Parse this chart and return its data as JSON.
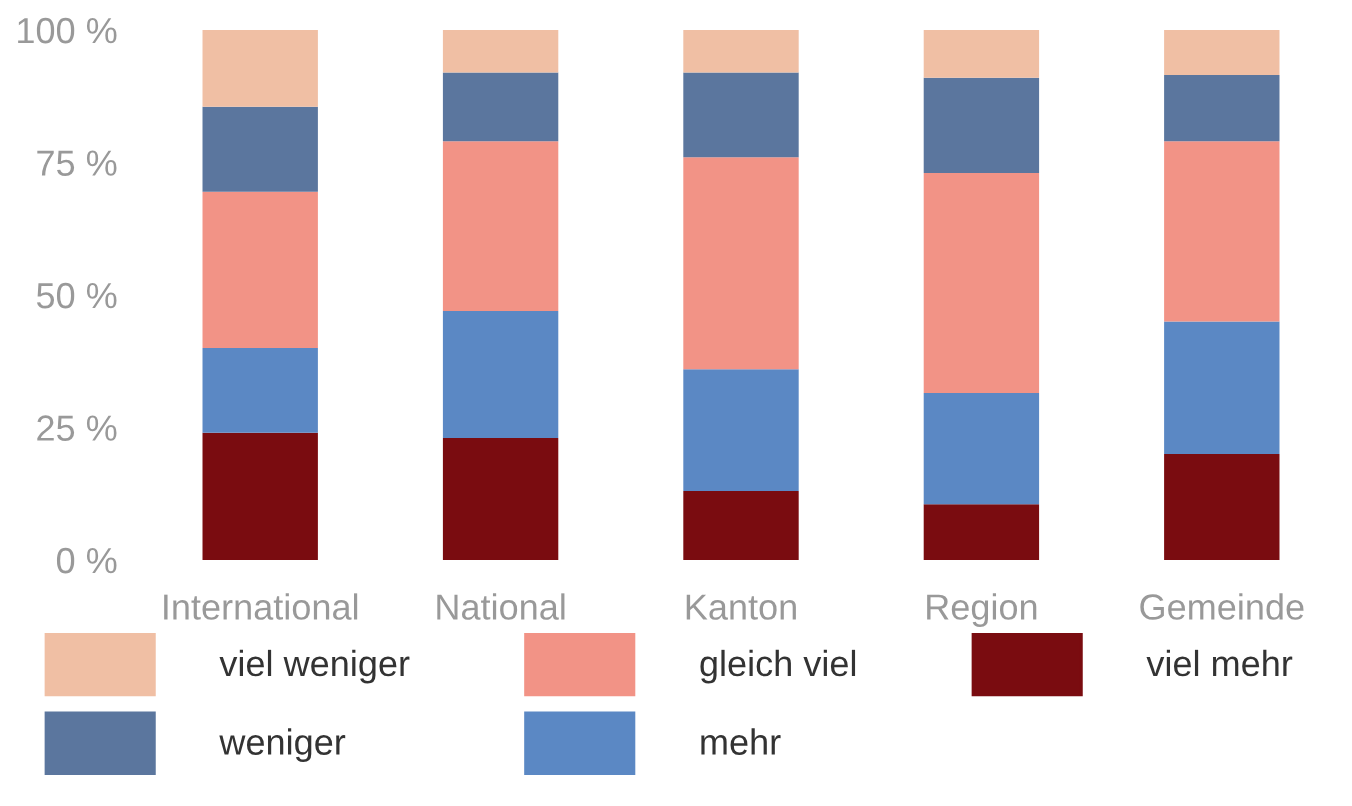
{
  "chart_data": {
    "type": "bar",
    "stacked": true,
    "categories": [
      "International",
      "National",
      "Kanton",
      "Region",
      "Gemeinde"
    ],
    "series": [
      {
        "name": "viel mehr",
        "color": "#7a0c10",
        "values": [
          24,
          23,
          13,
          10.5,
          20
        ]
      },
      {
        "name": "mehr",
        "color": "#5b88c4",
        "values": [
          16,
          24,
          23,
          21,
          25
        ]
      },
      {
        "name": "gleich viel",
        "color": "#f29386",
        "values": [
          29.5,
          32,
          40,
          41.5,
          34
        ]
      },
      {
        "name": "weniger",
        "color": "#5b769e",
        "values": [
          16,
          13,
          16,
          18,
          12.5
        ]
      },
      {
        "name": "viel weniger",
        "color": "#f0bfa4",
        "values": [
          14.5,
          8,
          8,
          9,
          8.5
        ]
      }
    ],
    "ylim": [
      0,
      100
    ],
    "yticks": [
      {
        "value": 0,
        "label": "0 %"
      },
      {
        "value": 25,
        "label": "25 %"
      },
      {
        "value": 50,
        "label": "50 %"
      },
      {
        "value": 75,
        "label": "75 %"
      },
      {
        "value": 100,
        "label": "100 %"
      }
    ],
    "grid": false,
    "legend": "bottom"
  }
}
